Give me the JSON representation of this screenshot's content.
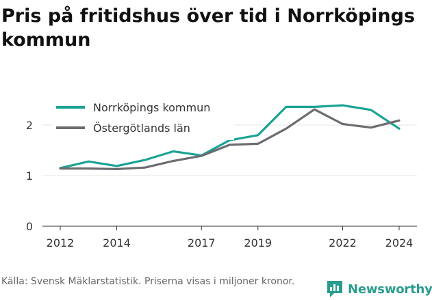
{
  "title": "Pris på fritidshus över tid i Norrköpings kommun",
  "footer_text": "Källa: Svensk Mäklarstatistik. Priserna visas i miljoner kronor.",
  "brand": {
    "name": "Newsworthy",
    "color": "#2a9c8d",
    "icon": "newsworthy-logo-icon"
  },
  "chart_data": {
    "type": "line",
    "x": [
      2012,
      2013,
      2014,
      2015,
      2016,
      2017,
      2018,
      2019,
      2020,
      2021,
      2022,
      2023,
      2024
    ],
    "xticks": [
      2012,
      2014,
      2017,
      2019,
      2022,
      2024
    ],
    "yticks": [
      0,
      1,
      2
    ],
    "xlim": [
      2012,
      2024
    ],
    "ylim": [
      0,
      2.5
    ],
    "grid": "horizontal",
    "legend_position": "top-left",
    "series": [
      {
        "name": "Norrköpings kommun",
        "color": "#1aa394",
        "values": [
          1.15,
          1.28,
          1.19,
          1.31,
          1.48,
          1.4,
          1.7,
          1.8,
          2.36,
          2.36,
          2.39,
          2.3,
          1.93
        ]
      },
      {
        "name": "Östergötlands län",
        "color": "#6b6b70",
        "values": [
          1.14,
          1.14,
          1.13,
          1.16,
          1.29,
          1.39,
          1.61,
          1.63,
          1.93,
          2.31,
          2.02,
          1.95,
          2.09
        ]
      }
    ]
  }
}
